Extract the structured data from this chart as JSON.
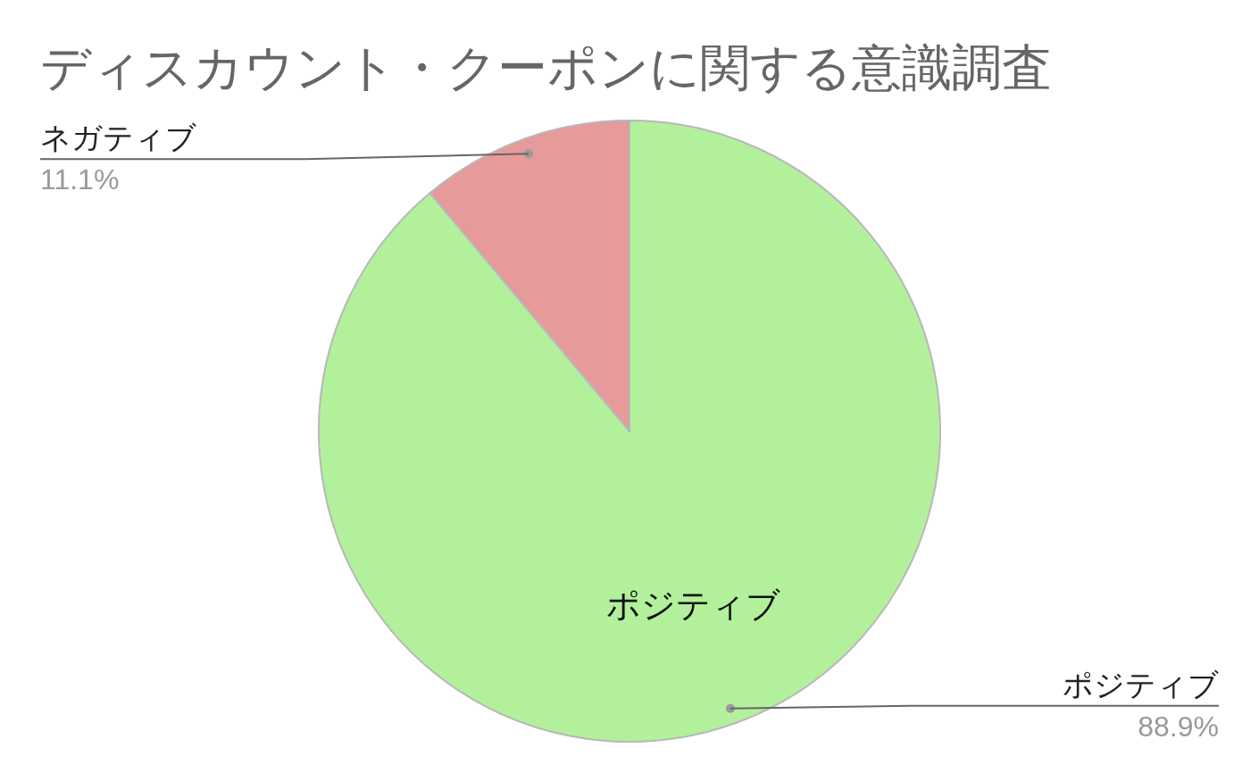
{
  "chart_data": {
    "type": "pie",
    "title": "ディスカウント・クーポンに関する意識調査",
    "categories": [
      "ポジティブ",
      "ネガティブ"
    ],
    "values": [
      88.9,
      11.1
    ],
    "colors": [
      "#b3f09b",
      "#e79a9a"
    ],
    "value_labels": [
      "88.9%",
      "11.1%"
    ],
    "annotations": [
      {
        "text": "ポジティブ",
        "x": "ポジティブ"
      }
    ]
  }
}
